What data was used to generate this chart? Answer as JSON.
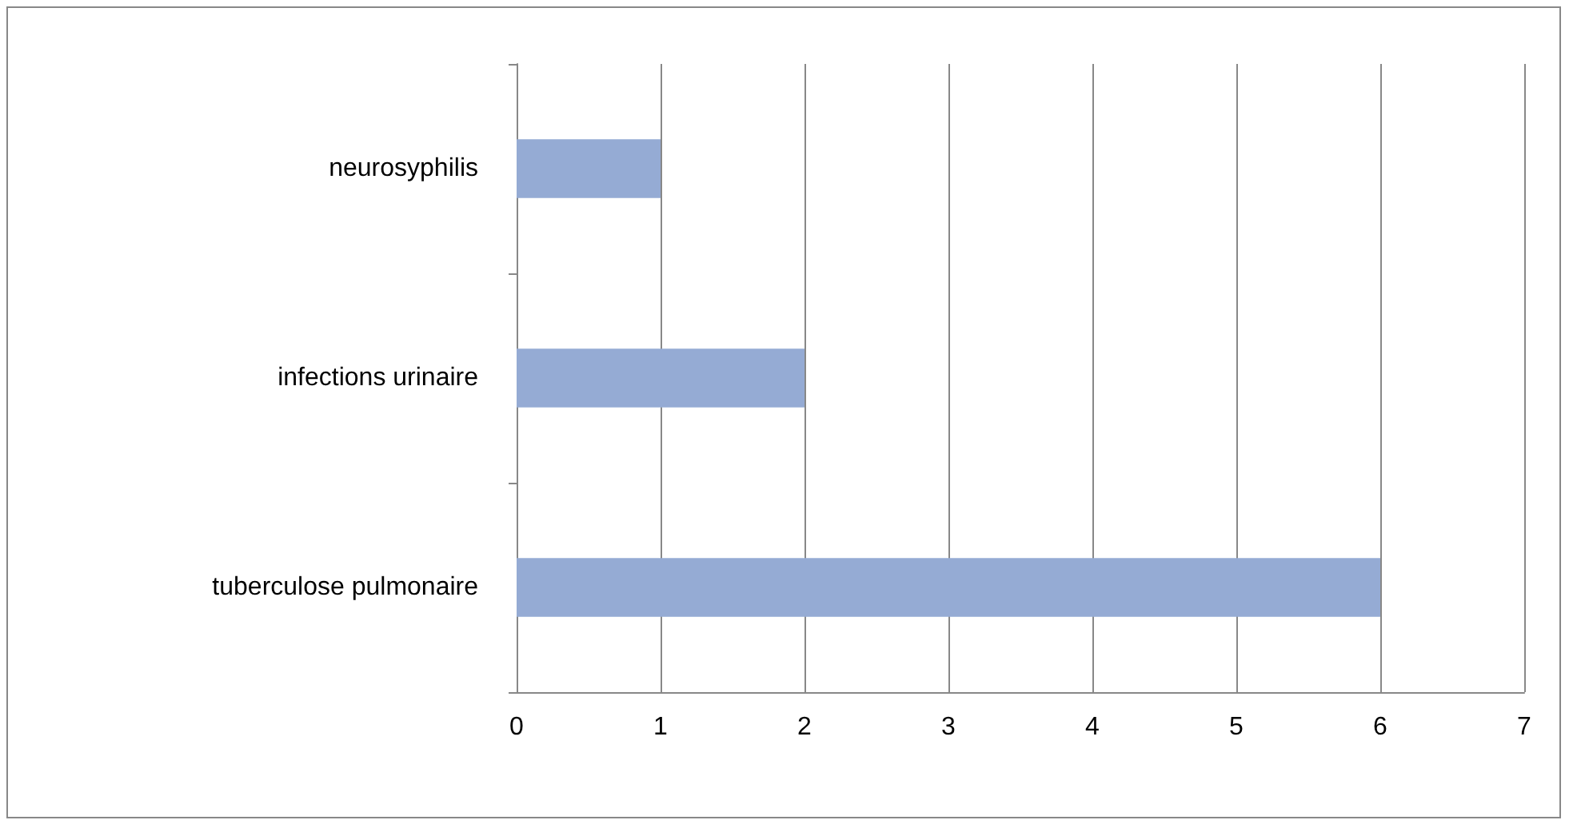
{
  "chart_data": {
    "type": "bar",
    "orientation": "horizontal",
    "categories": [
      "neurosyphilis",
      "infections urinaire",
      "tuberculose pulmonaire"
    ],
    "values": [
      1,
      2,
      6
    ],
    "color": "#95abd4",
    "xlim": [
      0,
      7
    ],
    "xticks": [
      0,
      1,
      2,
      3,
      4,
      5,
      6,
      7
    ],
    "grid": "x"
  }
}
